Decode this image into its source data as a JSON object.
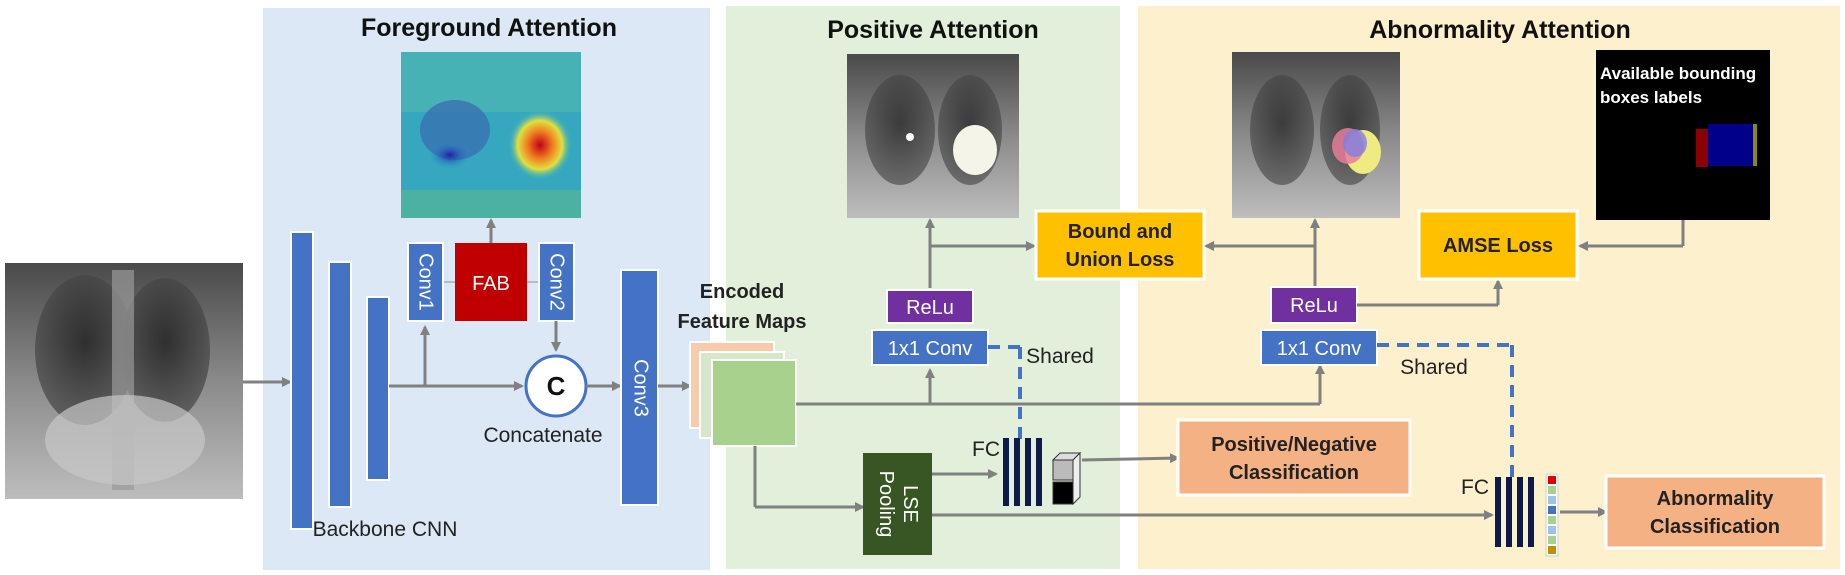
{
  "panels": {
    "foreground": {
      "title": "Foreground Attention",
      "color": "#dce8f5"
    },
    "positive": {
      "title": "Positive Attention",
      "color": "#e2efda"
    },
    "abnormality": {
      "title": "Abnormality Attention",
      "color": "#fdf0cc"
    }
  },
  "labels": {
    "conv1": "Conv1",
    "conv2": "Conv2",
    "conv3": "Conv3",
    "fab": "FAB",
    "concat_symbol": "C",
    "concatenate": "Concatenate",
    "backbone": "Backbone CNN",
    "encoded_line1": "Encoded",
    "encoded_line2": "Feature Maps",
    "relu_pos": "ReLu",
    "conv1x1_pos": "1x1 Conv",
    "shared_pos": "Shared",
    "bound_line1": "Bound and",
    "bound_line2": "Union Loss",
    "fc_pos": "FC",
    "lse_line1": "LSE",
    "lse_line2": "Pooling",
    "posneg_line1": "Positive/Negative",
    "posneg_line2": "Classification",
    "relu_abn": "ReLu",
    "conv1x1_abn": "1x1 Conv",
    "shared_abn": "Shared",
    "amse": "AMSE Loss",
    "fc_abn": "FC",
    "abn_class_line1": "Abnormality",
    "abn_class_line2": "Classification",
    "bbox_line1": "Available bounding",
    "bbox_line2": "boxes labels"
  },
  "colors": {
    "conv_blue": "#4472c4",
    "fab_red": "#c00000",
    "relu_purple": "#7030a0",
    "loss_orange": "#ffc000",
    "class_salmon": "#f4b183",
    "lse_green": "#375623",
    "feature_green": "#a9d18e",
    "fc_navy": "#0d1a4a"
  },
  "icons": {
    "xray_input": "chest-xray-image",
    "heatmap": "attention-heatmap-image",
    "positive_mask": "xray-with-positive-mask-image",
    "abnormality_mask": "xray-with-abnormality-mask-image",
    "bbox_image": "bounding-box-label-image"
  }
}
